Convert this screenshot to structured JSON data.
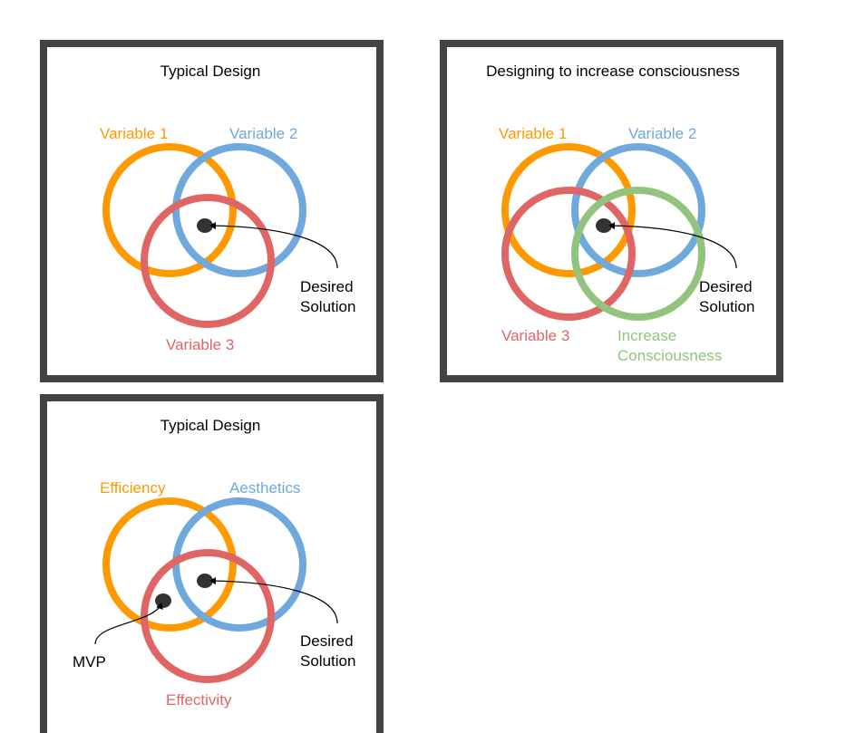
{
  "colors": {
    "frame": "#434343",
    "orange": "#ff9900",
    "blue": "#6fa8dc",
    "red": "#e06666",
    "green": "#93c47d",
    "dot": "#333333"
  },
  "panel1": {
    "title": "Typical Design",
    "var1": "Variable 1",
    "var2": "Variable 2",
    "var3": "Variable 3",
    "desired_line1": "Desired",
    "desired_line2": "Solution"
  },
  "panel2": {
    "title": "Designing to increase consciousness",
    "var1": "Variable 1",
    "var2": "Variable 2",
    "var3": "Variable 3",
    "var4_line1": "Increase",
    "var4_line2": "Consciousness",
    "desired_line1": "Desired",
    "desired_line2": "Solution"
  },
  "panel3": {
    "title": "Typical Design",
    "var1": "Efficiency",
    "var2": "Aesthetics",
    "var3": "Effectivity",
    "mvp": "MVP",
    "desired_line1": "Desired",
    "desired_line2": "Solution"
  }
}
